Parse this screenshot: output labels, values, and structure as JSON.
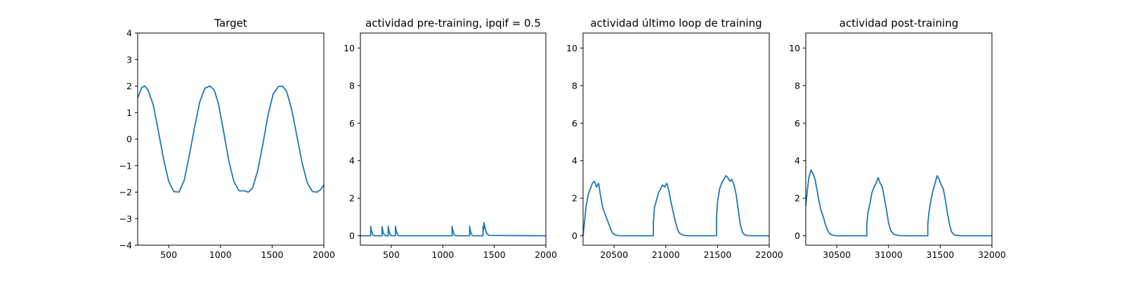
{
  "chart_data": [
    {
      "type": "line",
      "title": "Target",
      "xlim": [
        200,
        2000
      ],
      "ylim": [
        -4,
        4
      ],
      "xticks": [
        500,
        1000,
        1500,
        2000
      ],
      "yticks": [
        -4,
        -3,
        -2,
        -1,
        0,
        1,
        2,
        3,
        4
      ],
      "xtick_labels": [
        "500",
        "1000",
        "1500",
        "2000"
      ],
      "ytick_labels": [
        "−4",
        "−3",
        "−2",
        "−1",
        "0",
        "1",
        "2",
        "3",
        "4"
      ],
      "series": [
        {
          "color": "#1f77b4",
          "x": [
            200,
            240,
            270,
            300,
            350,
            400,
            450,
            500,
            550,
            600,
            650,
            700,
            750,
            800,
            850,
            900,
            940,
            980,
            1030,
            1080,
            1130,
            1180,
            1230,
            1270,
            1310,
            1360,
            1410,
            1460,
            1510,
            1560,
            1600,
            1640,
            1690,
            1740,
            1790,
            1840,
            1890,
            1935,
            1970,
            2000
          ],
          "y": [
            1.55,
            1.95,
            2.0,
            1.85,
            1.3,
            0.3,
            -0.75,
            -1.6,
            -1.98,
            -2.0,
            -1.55,
            -0.6,
            0.45,
            1.4,
            1.92,
            2.0,
            1.85,
            1.35,
            0.3,
            -0.8,
            -1.6,
            -1.95,
            -1.95,
            -2.0,
            -1.85,
            -1.2,
            -0.2,
            0.9,
            1.7,
            1.98,
            2.0,
            1.8,
            1.1,
            0.1,
            -0.9,
            -1.65,
            -1.98,
            -2.0,
            -1.9,
            -1.72
          ]
        }
      ]
    },
    {
      "type": "line",
      "title": "actividad pre-training, ipqif = 0.5",
      "xlim": [
        200,
        2000
      ],
      "ylim": [
        -0.5,
        10.8
      ],
      "xticks": [
        500,
        1000,
        1500,
        2000
      ],
      "yticks": [
        0,
        2,
        4,
        6,
        8,
        10
      ],
      "xtick_labels": [
        "500",
        "1000",
        "1500",
        "2000"
      ],
      "ytick_labels": [
        "0",
        "2",
        "4",
        "6",
        "8",
        "10"
      ],
      "series": [
        {
          "color": "#1f77b4",
          "x": [
            200,
            300,
            300,
            310,
            320,
            335,
            410,
            410,
            420,
            430,
            445,
            470,
            470,
            480,
            490,
            505,
            540,
            540,
            550,
            560,
            575,
            1090,
            1090,
            1100,
            1110,
            1125,
            1260,
            1260,
            1270,
            1280,
            1295,
            1390,
            1390,
            1395,
            1400,
            1400,
            1410,
            1425,
            1445,
            2000
          ],
          "y": [
            0,
            0,
            0.5,
            0.22,
            0.06,
            0,
            0,
            0.48,
            0.2,
            0.06,
            0,
            0,
            0.5,
            0.22,
            0.06,
            0,
            0,
            0.5,
            0.22,
            0.06,
            0,
            0,
            0.5,
            0.22,
            0.06,
            0,
            0,
            0.5,
            0.22,
            0.06,
            0,
            0,
            0.5,
            0.3,
            0.62,
            0.7,
            0.42,
            0.15,
            0.02,
            0
          ]
        }
      ]
    },
    {
      "type": "line",
      "title": "actividad último loop de training",
      "xlim": [
        20200,
        22000
      ],
      "ylim": [
        -0.5,
        10.8
      ],
      "xticks": [
        20500,
        21000,
        21500,
        22000
      ],
      "yticks": [
        0,
        2,
        4,
        6,
        8,
        10
      ],
      "xtick_labels": [
        "20500",
        "21000",
        "21500",
        "22000"
      ],
      "ytick_labels": [
        "0",
        "2",
        "4",
        "6",
        "8",
        "10"
      ],
      "series": [
        {
          "color": "#1f77b4",
          "x": [
            20200,
            20215,
            20230,
            20250,
            20270,
            20290,
            20310,
            20330,
            20350,
            20370,
            20390,
            20410,
            20430,
            20450,
            20470,
            20490,
            20510,
            20530,
            20560,
            20600,
            20700,
            20800,
            20880,
            20880,
            20890,
            20910,
            20930,
            20950,
            20970,
            20990,
            21010,
            21030,
            21050,
            21070,
            21090,
            21110,
            21130,
            21160,
            21200,
            21300,
            21400,
            21490,
            21490,
            21500,
            21520,
            21540,
            21560,
            21580,
            21600,
            21620,
            21640,
            21660,
            21680,
            21700,
            21720,
            21740,
            21760,
            21790,
            21850,
            21950,
            22000
          ],
          "y": [
            0,
            0.8,
            1.6,
            2.2,
            2.5,
            2.8,
            2.9,
            2.6,
            2.8,
            2.1,
            1.5,
            1.2,
            0.9,
            0.6,
            0.3,
            0.12,
            0.05,
            0.02,
            0,
            0,
            0,
            0,
            0,
            0.7,
            1.5,
            1.9,
            2.3,
            2.5,
            2.7,
            2.6,
            2.8,
            2.4,
            1.8,
            1.3,
            0.8,
            0.4,
            0.15,
            0.05,
            0,
            0,
            0,
            0,
            0.9,
            1.8,
            2.5,
            2.8,
            3.0,
            3.2,
            3.1,
            2.9,
            3.0,
            2.7,
            2.2,
            1.4,
            0.6,
            0.2,
            0.06,
            0.01,
            0,
            0,
            0
          ]
        }
      ]
    },
    {
      "type": "line",
      "title": "actividad post-training",
      "xlim": [
        30200,
        32000
      ],
      "ylim": [
        -0.5,
        10.8
      ],
      "xticks": [
        30500,
        31000,
        31500,
        32000
      ],
      "yticks": [
        0,
        2,
        4,
        6,
        8,
        10
      ],
      "xtick_labels": [
        "30500",
        "31000",
        "31500",
        "32000"
      ],
      "ytick_labels": [
        "0",
        "2",
        "4",
        "6",
        "8",
        "10"
      ],
      "series": [
        {
          "color": "#1f77b4",
          "x": [
            30200,
            30215,
            30230,
            30250,
            30270,
            30290,
            30310,
            30330,
            30350,
            30370,
            30390,
            30410,
            30430,
            30450,
            30480,
            30520,
            30600,
            30700,
            30790,
            30790,
            30800,
            30820,
            30840,
            30860,
            30880,
            30900,
            30920,
            30940,
            30960,
            30980,
            31000,
            31020,
            31050,
            31100,
            31200,
            31300,
            31380,
            31380,
            31390,
            31410,
            31430,
            31450,
            31470,
            31490,
            31510,
            31530,
            31550,
            31570,
            31590,
            31610,
            31640,
            31700,
            31800,
            31900,
            32000
          ],
          "y": [
            1.6,
            2.4,
            3.1,
            3.5,
            3.3,
            3.0,
            2.4,
            1.8,
            1.3,
            1.0,
            0.6,
            0.3,
            0.12,
            0.05,
            0.01,
            0,
            0,
            0,
            0,
            0.6,
            1.2,
            1.7,
            2.3,
            2.6,
            2.8,
            3.1,
            2.8,
            2.6,
            2.0,
            1.4,
            0.7,
            0.3,
            0.08,
            0.01,
            0,
            0,
            0,
            0.6,
            1.2,
            1.9,
            2.4,
            2.8,
            3.2,
            3.0,
            2.7,
            2.5,
            1.9,
            1.2,
            0.6,
            0.2,
            0.04,
            0,
            0,
            0,
            0
          ]
        }
      ]
    }
  ]
}
